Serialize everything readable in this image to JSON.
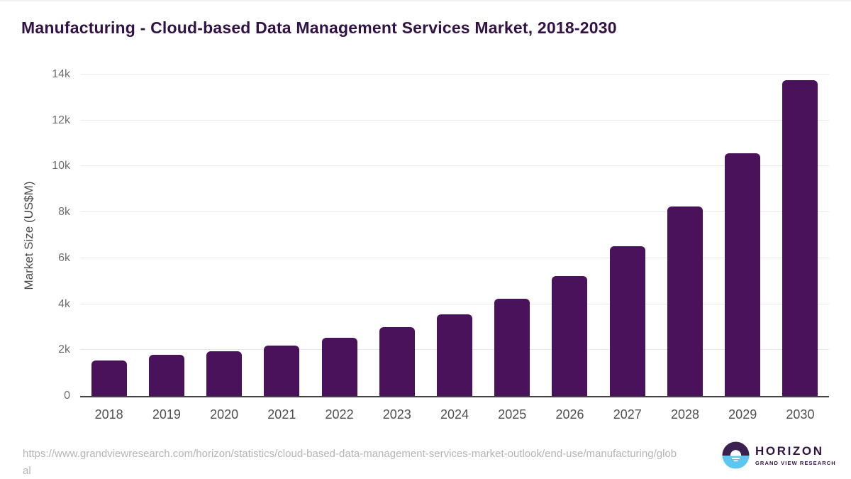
{
  "title": "Manufacturing - Cloud-based Data Management Services Market, 2018-2030",
  "footer": {
    "source_url": "https://www.grandviewresearch.com/horizon/statistics/cloud-based-data-management-services-market-outlook/end-use/manufacturing/global",
    "logo": {
      "name": "HORIZON",
      "subtitle": "GRAND VIEW RESEARCH"
    }
  },
  "colors": {
    "bar": "#4a125a",
    "title": "#321245",
    "axis_title": "#4a4a4a",
    "y_tick_label": "#6e6e6e",
    "x_tick_label": "#4f4f4f",
    "gridline": "#e9e9e9",
    "axis_line": "#424242",
    "url_text": "#b4b4b4",
    "logo_purple": "#3a2150",
    "logo_blue": "#5bc6ef"
  },
  "chart_data": {
    "type": "bar",
    "title": "Manufacturing - Cloud-based Data Management Services Market, 2018-2030",
    "categories": [
      "2018",
      "2019",
      "2020",
      "2021",
      "2022",
      "2023",
      "2024",
      "2025",
      "2026",
      "2027",
      "2028",
      "2029",
      "2030"
    ],
    "values": [
      1550,
      1780,
      1960,
      2200,
      2550,
      3000,
      3540,
      4230,
      5230,
      6510,
      8240,
      10580,
      13750
    ],
    "xlabel": "",
    "ylabel": "Market Size (US$M)",
    "ylim": [
      0,
      14000
    ],
    "yticks": [
      {
        "label": "0",
        "value": 0
      },
      {
        "label": "2k",
        "value": 2000
      },
      {
        "label": "4k",
        "value": 4000
      },
      {
        "label": "6k",
        "value": 6000
      },
      {
        "label": "8k",
        "value": 8000
      },
      {
        "label": "10k",
        "value": 10000
      },
      {
        "label": "12k",
        "value": 12000
      },
      {
        "label": "14k",
        "value": 14000
      }
    ],
    "grid": true,
    "legend": false,
    "bar_color": "#4a125a"
  }
}
